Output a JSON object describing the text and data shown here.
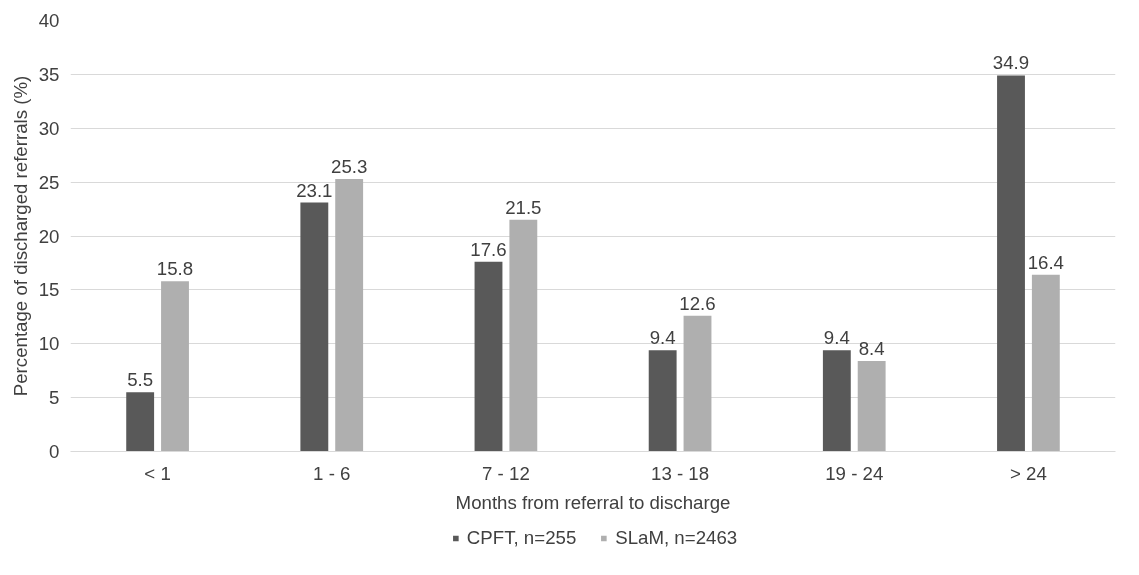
{
  "chart_data": {
    "type": "bar",
    "xlabel": "Months from referral to discharge",
    "ylabel": "Percentage of discharged referrals (%)",
    "categories": [
      "< 1",
      "1 - 6",
      "7 - 12",
      "13 - 18",
      "19 - 24",
      "> 24"
    ],
    "series": [
      {
        "name": "CPFT, n=255",
        "color": "#595959",
        "values": [
          5.5,
          23.1,
          17.6,
          9.4,
          9.4,
          34.9
        ]
      },
      {
        "name": "SLaM, n=2463",
        "color": "#afafaf",
        "values": [
          15.8,
          25.3,
          21.5,
          12.6,
          8.4,
          16.4
        ]
      }
    ],
    "ylim": [
      0,
      40
    ],
    "yticks": [
      0,
      5,
      10,
      15,
      20,
      25,
      30,
      35,
      40
    ],
    "grid": "y",
    "legend": "bottom",
    "data_labels": true
  }
}
